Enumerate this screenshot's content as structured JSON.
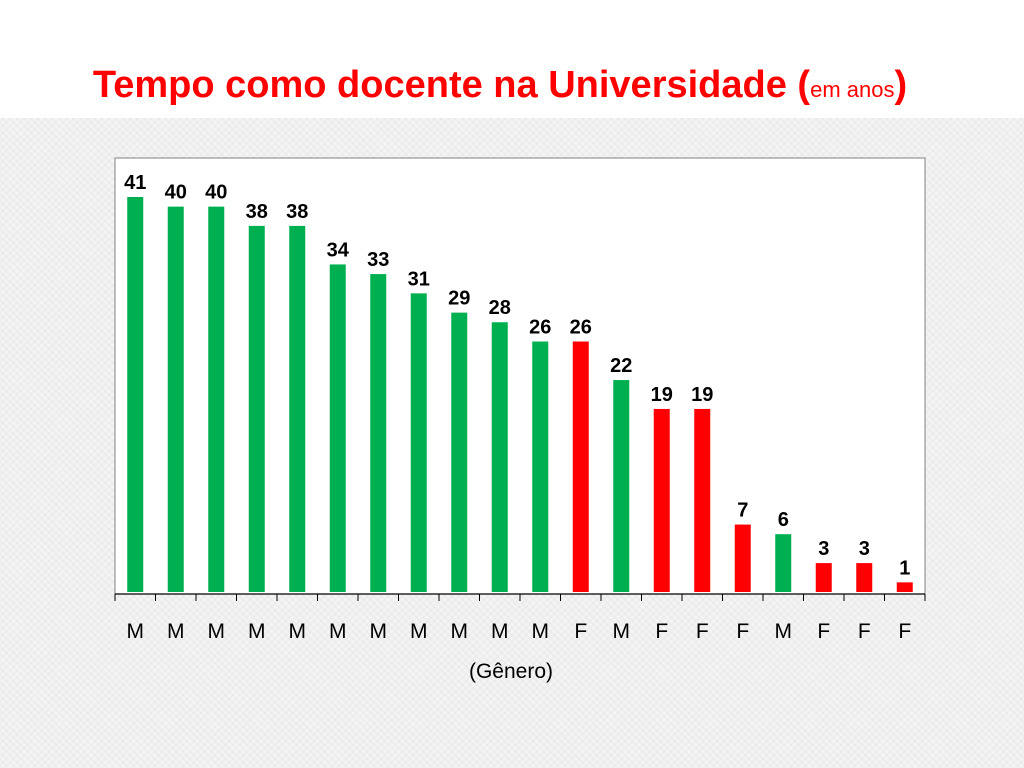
{
  "title": {
    "main": "Tempo como docente na Universidade (",
    "small": "em anos",
    "close": ")"
  },
  "colors": {
    "M": "#00b050",
    "F": "#ff0000",
    "title": "#ff0000"
  },
  "chart_data": {
    "type": "bar",
    "title": "Tempo como docente na Universidade (em anos)",
    "xlabel": "(Gênero)",
    "ylabel": "",
    "ylim": [
      0,
      45
    ],
    "grid": false,
    "legend": "none",
    "categories": [
      "M",
      "M",
      "M",
      "M",
      "M",
      "M",
      "M",
      "M",
      "M",
      "M",
      "M",
      "F",
      "M",
      "F",
      "F",
      "F",
      "M",
      "F",
      "F",
      "F"
    ],
    "values": [
      41,
      40,
      40,
      38,
      38,
      34,
      33,
      31,
      29,
      28,
      26,
      26,
      22,
      19,
      19,
      7,
      6,
      3,
      3,
      1
    ]
  }
}
